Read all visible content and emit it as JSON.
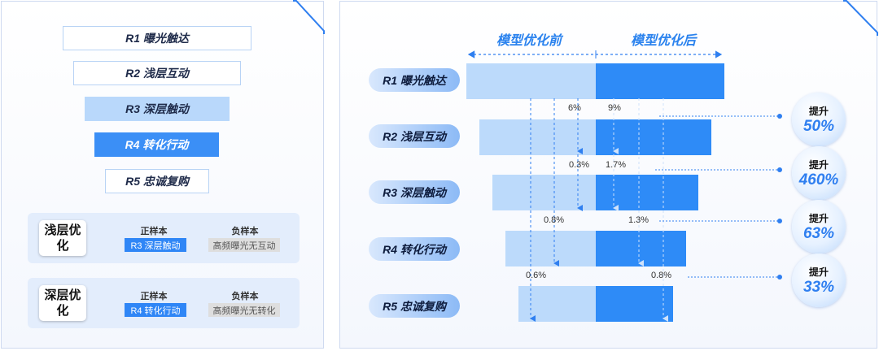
{
  "levels": [
    {
      "label": "R1 曝光触达"
    },
    {
      "label": "R2 浅层互动"
    },
    {
      "label": "R3 深层触动"
    },
    {
      "label": "R4 转化行动"
    },
    {
      "label": "R5 忠诚复购"
    }
  ],
  "cards": [
    {
      "title": "浅层优化",
      "pos_header": "正样本",
      "neg_header": "负样本",
      "pos_value": "R3 深层触动",
      "neg_value": "高频曝光无互动"
    },
    {
      "title": "深层优化",
      "pos_header": "正样本",
      "neg_header": "负样本",
      "pos_value": "R4 转化行动",
      "neg_value": "高频曝光无转化"
    }
  ],
  "header": {
    "before": "模型优化前",
    "after": "模型优化后"
  },
  "funnel_labels": [
    "R1 曝光触达",
    "R2 浅层互动",
    "R3 深层触动",
    "R4 转化行动",
    "R5 忠诚复购"
  ],
  "conversion": {
    "before": [
      "6%",
      "0.3%",
      "0.8%",
      "0.6%"
    ],
    "after": [
      "9%",
      "1.7%",
      "1.3%",
      "0.8%"
    ]
  },
  "lifts": [
    {
      "label": "提升",
      "value": "50%"
    },
    {
      "label": "提升",
      "value": "460%"
    },
    {
      "label": "提升",
      "value": "63%"
    },
    {
      "label": "提升",
      "value": "33%"
    }
  ],
  "colors": {
    "accent": "#2e8bf7",
    "light": "#bcdafb",
    "text_blue": "#2a82ee"
  }
}
